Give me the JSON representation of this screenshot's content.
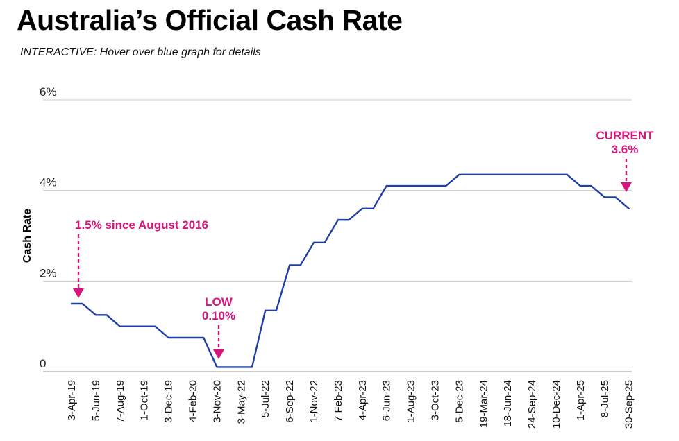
{
  "header": {
    "title": "Australia’s Official Cash Rate",
    "subtitle": "INTERACTIVE: Hover over blue graph for details"
  },
  "colors": {
    "line": "#1f3fa6",
    "annotation": "#d6157c",
    "grid": "#c8c8c8"
  },
  "chart_data": {
    "type": "line",
    "title": "Australia’s Official Cash Rate",
    "subtitle": "INTERACTIVE: Hover over blue graph for details",
    "ylabel": "Cash Rate",
    "xlabel": "",
    "ylim": [
      0,
      6
    ],
    "yticks": [
      {
        "value": 0,
        "label": "0"
      },
      {
        "value": 2,
        "label": "2%"
      },
      {
        "value": 4,
        "label": "4%"
      },
      {
        "value": 6,
        "label": "6%"
      }
    ],
    "grid": "horizontal",
    "x": [
      "3-Apr-19",
      "5-Jun-19",
      "7-Aug-19",
      "1-Oct-19",
      "3-Dec-19",
      "4-Feb-20",
      "3-Nov-20",
      "3-May-22",
      "5-Jul-22",
      "6-Sep-22",
      "1-Nov-22",
      "7 Feb-23",
      "4-Apr-23",
      "6-Jun-23",
      "1-Aug-23",
      "3-Oct-23",
      "5-Dec-23",
      "19-Mar-24",
      "18-Jun-24",
      "24-Sep-24",
      "10-Dec-24",
      "1-Apr-25",
      "8-Jul-25",
      "30-Sep-25"
    ],
    "series": [
      {
        "values": [
          1.5,
          1.25,
          1.0,
          1.0,
          0.75,
          0.75,
          0.1,
          0.1,
          1.35,
          2.35,
          2.85,
          3.35,
          3.6,
          4.1,
          4.1,
          4.1,
          4.35,
          4.35,
          4.35,
          4.35,
          4.35,
          4.1,
          3.85,
          3.6
        ]
      }
    ],
    "annotations": [
      {
        "lines": [
          "1.5% since August 2016"
        ],
        "x": "3-Apr-19",
        "value": 1.5
      },
      {
        "lines": [
          "LOW",
          "0.10%"
        ],
        "x": "3-Nov-20",
        "value": 0.1
      },
      {
        "lines": [
          "CURRENT",
          "3.6%"
        ],
        "x": "30-Sep-25",
        "value": 3.6
      }
    ]
  }
}
